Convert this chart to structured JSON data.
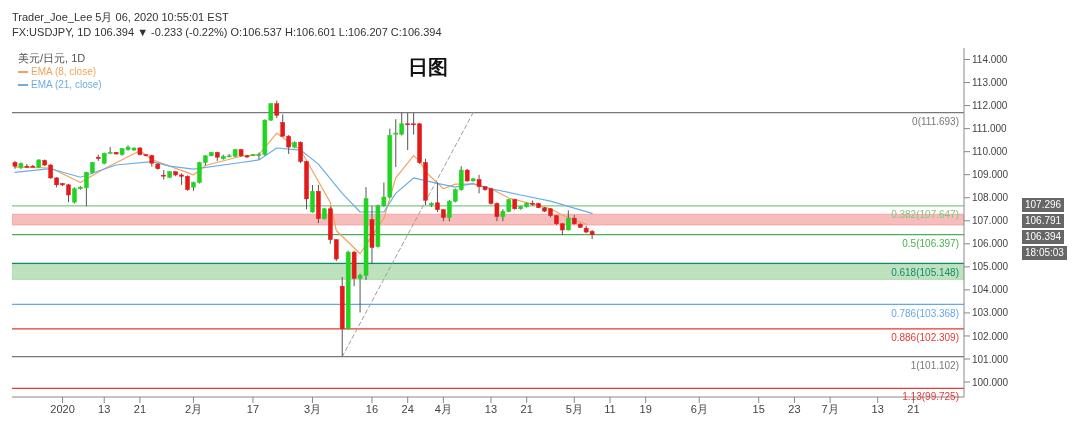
{
  "chart_data": {
    "type": "candlestick",
    "title": "日图",
    "subtitle": "Trader_Joe_Lee 5月 06, 2020 10:55:01 EST",
    "legend_title": "美元/日元, 1D",
    "legend": "top left",
    "categories": [
      null,
      null,
      null,
      null,
      null,
      null,
      null,
      null,
      "2020",
      null,
      null,
      null,
      null,
      null,
      null,
      "13",
      null,
      null,
      null,
      null,
      null,
      "21",
      null,
      null,
      null,
      null,
      null,
      null,
      null,
      null,
      "2月",
      null,
      null,
      null,
      null,
      null,
      null,
      null,
      null,
      null,
      "17",
      null,
      null,
      null,
      null,
      null,
      null,
      null,
      null,
      null,
      "3月",
      null,
      null,
      null,
      null,
      null,
      null,
      null,
      null,
      null,
      "16",
      null,
      null,
      null,
      null,
      null,
      "24",
      null,
      null,
      null,
      null,
      null,
      "4月",
      null,
      null,
      null,
      null,
      null,
      null,
      null,
      "13",
      null,
      null,
      null,
      null,
      null,
      "21",
      null,
      null,
      null,
      null,
      null,
      null,
      null,
      "5月",
      null,
      null,
      null,
      null,
      null,
      "11",
      null,
      null,
      null,
      null,
      null,
      "19",
      null,
      null,
      null,
      null,
      null,
      null,
      null,
      null,
      "6月",
      null,
      null,
      null,
      null,
      null,
      null,
      null,
      null,
      null,
      "15",
      null,
      null,
      null,
      null,
      null,
      "23",
      null,
      null,
      null,
      null,
      null,
      "7月",
      null,
      null,
      null,
      null,
      null,
      null,
      null,
      "13",
      null,
      null,
      null,
      null,
      null,
      "21",
      null,
      null,
      null,
      null,
      null,
      null,
      null,
      null
    ],
    "ohlc": [
      [
        109.53,
        109.6,
        109.26,
        109.37
      ],
      [
        109.33,
        109.53,
        109.24,
        109.49
      ],
      [
        109.37,
        109.46,
        109.29,
        109.33
      ],
      [
        109.37,
        109.42,
        109.32,
        109.35
      ],
      [
        109.33,
        109.67,
        109.3,
        109.64
      ],
      [
        109.62,
        109.66,
        109.38,
        109.42
      ],
      [
        109.42,
        109.46,
        108.82,
        108.86
      ],
      [
        108.86,
        108.9,
        108.45,
        108.56
      ],
      [
        108.62,
        108.64,
        108.5,
        108.56
      ],
      [
        108.56,
        108.6,
        107.81,
        108.12
      ],
      [
        107.81,
        108.45,
        107.75,
        108.39
      ],
      [
        108.39,
        108.5,
        108.35,
        108.46
      ],
      [
        108.43,
        109.13,
        107.63,
        109.1
      ],
      [
        109.09,
        109.56,
        109.05,
        109.53
      ],
      [
        109.76,
        109.87,
        109.6,
        109.7
      ],
      [
        109.5,
        109.96,
        109.45,
        109.93
      ],
      [
        109.93,
        110.2,
        109.9,
        109.97
      ],
      [
        109.97,
        109.99,
        109.87,
        109.9
      ],
      [
        109.87,
        110.16,
        109.83,
        110.13
      ],
      [
        110.09,
        110.27,
        110.04,
        110.2
      ],
      [
        110.07,
        110.18,
        110.04,
        110.16
      ],
      [
        110.16,
        110.2,
        109.83,
        109.87
      ],
      [
        109.87,
        109.9,
        109.8,
        109.83
      ],
      [
        109.83,
        109.87,
        109.35,
        109.5
      ],
      [
        109.46,
        109.5,
        109.22,
        109.26
      ],
      [
        108.98,
        109.2,
        108.79,
        108.97
      ],
      [
        108.89,
        109.16,
        108.85,
        109.13
      ],
      [
        109.13,
        109.15,
        108.93,
        108.99
      ],
      [
        108.99,
        109.06,
        108.56,
        108.93
      ],
      [
        108.93,
        108.97,
        108.3,
        108.35
      ],
      [
        108.46,
        108.7,
        108.3,
        108.66
      ],
      [
        108.66,
        109.56,
        108.62,
        109.53
      ],
      [
        109.53,
        109.85,
        109.4,
        109.82
      ],
      [
        109.82,
        110.0,
        109.8,
        109.97
      ],
      [
        109.97,
        110.0,
        109.6,
        109.76
      ],
      [
        109.69,
        109.87,
        109.65,
        109.8
      ],
      [
        109.8,
        109.9,
        109.75,
        109.82
      ],
      [
        109.8,
        110.12,
        109.76,
        110.09
      ],
      [
        110.09,
        110.12,
        109.77,
        109.82
      ],
      [
        109.82,
        109.86,
        109.73,
        109.77
      ],
      [
        109.85,
        109.9,
        109.8,
        109.87
      ],
      [
        109.83,
        109.96,
        109.66,
        109.87
      ],
      [
        109.87,
        111.4,
        109.83,
        111.37
      ],
      [
        111.37,
        112.11,
        111.33,
        112.08
      ],
      [
        112.08,
        112.22,
        111.46,
        111.58
      ],
      [
        111.27,
        111.62,
        110.67,
        110.67
      ],
      [
        110.67,
        110.72,
        109.9,
        110.2
      ],
      [
        110.2,
        110.45,
        110.15,
        110.4
      ],
      [
        110.4,
        110.45,
        109.5,
        109.57
      ],
      [
        109.57,
        109.6,
        107.5,
        107.95
      ],
      [
        107.38,
        108.55,
        107.35,
        108.28
      ],
      [
        108.28,
        108.56,
        106.9,
        107.09
      ],
      [
        107.09,
        107.55,
        107.05,
        107.52
      ],
      [
        107.52,
        107.62,
        106.0,
        106.18
      ],
      [
        106.18,
        106.2,
        105.25,
        105.34
      ],
      [
        104.16,
        104.56,
        101.102,
        102.31
      ],
      [
        102.31,
        105.7,
        102.28,
        105.64
      ],
      [
        105.64,
        105.7,
        104.16,
        104.5
      ],
      [
        104.5,
        104.7,
        103.02,
        104.63
      ],
      [
        104.63,
        108.46,
        104.43,
        107.96
      ],
      [
        107.05,
        107.65,
        105.13,
        105.84
      ],
      [
        105.88,
        107.7,
        105.84,
        107.65
      ],
      [
        107.65,
        108.66,
        107.6,
        108.03
      ],
      [
        108.03,
        111.0,
        107.98,
        110.71
      ],
      [
        110.76,
        111.41,
        109.33,
        110.81
      ],
      [
        110.76,
        111.693,
        110.7,
        111.21
      ],
      [
        111.21,
        111.68,
        110.07,
        111.2
      ],
      [
        111.21,
        111.68,
        110.74,
        111.2
      ],
      [
        111.21,
        111.25,
        109.47,
        109.53
      ],
      [
        109.53,
        109.69,
        107.68,
        107.89
      ],
      [
        107.68,
        107.8,
        107.6,
        107.76
      ],
      [
        107.78,
        108.66,
        107.38,
        107.48
      ],
      [
        107.48,
        107.5,
        106.98,
        107.14
      ],
      [
        107.14,
        107.9,
        106.98,
        107.85
      ],
      [
        107.85,
        108.4,
        107.8,
        108.35
      ],
      [
        108.35,
        109.37,
        108.3,
        109.2
      ],
      [
        109.2,
        109.25,
        108.7,
        108.73
      ],
      [
        108.73,
        108.85,
        108.7,
        108.82
      ],
      [
        108.79,
        108.99,
        108.19,
        108.48
      ],
      [
        108.48,
        108.5,
        108.3,
        108.35
      ],
      [
        108.39,
        108.43,
        107.7,
        107.75
      ],
      [
        107.75,
        107.8,
        106.98,
        107.18
      ],
      [
        107.18,
        107.5,
        106.98,
        107.41
      ],
      [
        107.41,
        107.95,
        107.37,
        107.92
      ],
      [
        107.92,
        107.95,
        107.48,
        107.52
      ],
      [
        107.52,
        107.65,
        107.48,
        107.61
      ],
      [
        107.61,
        107.8,
        107.57,
        107.76
      ],
      [
        107.76,
        107.88,
        107.65,
        107.75
      ],
      [
        107.75,
        107.78,
        107.55,
        107.57
      ],
      [
        107.56,
        107.6,
        107.38,
        107.42
      ],
      [
        107.52,
        107.55,
        107.15,
        107.22
      ],
      [
        107.22,
        107.25,
        106.82,
        106.87
      ],
      [
        106.87,
        106.9,
        106.38,
        106.6
      ],
      [
        106.6,
        107.45,
        106.58,
        107.11
      ],
      [
        107.11,
        107.25,
        106.83,
        106.87
      ],
      [
        106.85,
        106.9,
        106.68,
        106.71
      ],
      [
        106.68,
        106.78,
        106.46,
        106.51
      ],
      [
        106.537,
        106.601,
        106.207,
        106.394
      ],
      null,
      null,
      null,
      null,
      null,
      null,
      null,
      null,
      null,
      null,
      null,
      null,
      null,
      null,
      null,
      null,
      null,
      null,
      null,
      null,
      null,
      null,
      null,
      null,
      null,
      null,
      null,
      null,
      null,
      null,
      null,
      null,
      null,
      null,
      null,
      null,
      null,
      null,
      null,
      null,
      null,
      null,
      null,
      null,
      null,
      null,
      null,
      null,
      null,
      null,
      null,
      null,
      null,
      null,
      null,
      null,
      null,
      null,
      null,
      null,
      null,
      null
    ],
    "series": [
      {
        "type": "line",
        "name": "EMA (8, close)",
        "color": "#f4a25b",
        "values": [
          109.33,
          null,
          null,
          null,
          null,
          null,
          109.29,
          null,
          null,
          null,
          null,
          108.66,
          null,
          null,
          null,
          109.26,
          null,
          null,
          null,
          null,
          null,
          110.04,
          null,
          109.66,
          null,
          null,
          null,
          null,
          null,
          null,
          108.99,
          null,
          109.4,
          null,
          null,
          null,
          null,
          null,
          109.8,
          null,
          null,
          109.87,
          null,
          null,
          110.8,
          null,
          null,
          null,
          110.07,
          null,
          null,
          null,
          null,
          107.79,
          106.58,
          null,
          null,
          null,
          105.57,
          null,
          null,
          null,
          107.11,
          null,
          108.86,
          null,
          null,
          109.83,
          109.6,
          109.13,
          null,
          null,
          108.39,
          null,
          108.59,
          null,
          null,
          108.59,
          null,
          null,
          108.39,
          null,
          null,
          107.99,
          null,
          null,
          null,
          107.72,
          null,
          null,
          107.52,
          null,
          107.25,
          null,
          null,
          null,
          106.85,
          null,
          null,
          null,
          null,
          null,
          null,
          null,
          null,
          null,
          null,
          null,
          null,
          null,
          null,
          null,
          null,
          null,
          null,
          null,
          null,
          null,
          null,
          null,
          null,
          null,
          null,
          null,
          null,
          null,
          null,
          null,
          null,
          null,
          null,
          null,
          null,
          null,
          null,
          null,
          null,
          null,
          null,
          null,
          null,
          null,
          null,
          null,
          null,
          null,
          null,
          null,
          null,
          null,
          null,
          null,
          null,
          null,
          null,
          null,
          null,
          null,
          null,
          null
        ]
      },
      {
        "type": "line",
        "name": "EMA (21, close)",
        "color": "#6aaee6",
        "values": [
          109.1,
          null,
          null,
          null,
          null,
          null,
          109.26,
          null,
          null,
          null,
          null,
          108.89,
          null,
          null,
          null,
          null,
          null,
          109.42,
          null,
          null,
          null,
          null,
          null,
          109.57,
          null,
          null,
          109.37,
          null,
          null,
          null,
          109.24,
          null,
          null,
          null,
          null,
          null,
          null,
          null,
          109.53,
          null,
          null,
          109.64,
          null,
          null,
          110.16,
          null,
          null,
          null,
          110.07,
          null,
          null,
          109.46,
          null,
          null,
          null,
          108.19,
          null,
          null,
          107.38,
          null,
          null,
          null,
          107.38,
          null,
          108.19,
          null,
          null,
          108.86,
          null,
          null,
          null,
          108.62,
          null,
          null,
          108.46,
          null,
          null,
          108.62,
          null,
          null,
          108.39,
          null,
          null,
          null,
          null,
          108.12,
          null,
          null,
          null,
          null,
          107.85,
          null,
          null,
          null,
          null,
          null,
          null,
          107.32,
          null,
          null,
          null,
          null,
          null,
          null,
          null,
          null,
          null,
          null,
          null,
          null,
          null,
          null,
          null,
          null,
          null,
          null,
          null,
          null,
          null,
          null,
          null,
          null,
          null,
          null,
          null,
          null,
          null,
          null,
          null,
          null,
          null,
          null,
          null,
          null,
          null,
          null,
          null,
          null,
          null,
          null,
          null,
          null,
          null,
          null,
          null,
          null,
          null,
          null,
          null,
          null,
          null,
          null,
          null,
          null,
          null,
          null,
          null,
          null,
          null,
          null
        ]
      },
      {
        "type": "line",
        "color": "#9e9e9e",
        "line_style": "dashed",
        "values": [
          null,
          null,
          null,
          null,
          null,
          null,
          null,
          null,
          null,
          null,
          null,
          null,
          null,
          null,
          null,
          null,
          null,
          null,
          null,
          null,
          null,
          null,
          null,
          null,
          null,
          null,
          null,
          null,
          null,
          null,
          null,
          null,
          null,
          null,
          null,
          null,
          null,
          null,
          null,
          null,
          null,
          null,
          null,
          null,
          null,
          null,
          null,
          null,
          null,
          null,
          null,
          null,
          null,
          null,
          null,
          101.1,
          null,
          null,
          null,
          null,
          null,
          null,
          null,
          null,
          null,
          null,
          null,
          null,
          null,
          null,
          null,
          null,
          null,
          null,
          null,
          null,
          null,
          111.69,
          null,
          null,
          null,
          null,
          null,
          null,
          null,
          null,
          null,
          null,
          null,
          null,
          null,
          null,
          null,
          null,
          null,
          null,
          null,
          null,
          null,
          null,
          null,
          null,
          null,
          null,
          null,
          null,
          null,
          null,
          null,
          null,
          null,
          null,
          null,
          null,
          null,
          null,
          null,
          null,
          null,
          null,
          null,
          null,
          null,
          null,
          null,
          null,
          null,
          null,
          null,
          null,
          null,
          null,
          null,
          null,
          null,
          null,
          null,
          null,
          null,
          null,
          null,
          null,
          null,
          null,
          null,
          null,
          null,
          null,
          null,
          null,
          null,
          null,
          null,
          null,
          null,
          null,
          null,
          null,
          null,
          null
        ]
      }
    ],
    "ref_lines": [
      {
        "axis": "y",
        "value": 111.693,
        "label": "0(111.693)",
        "color": "#787878"
      },
      {
        "axis": "y",
        "value": 107.647,
        "label": "0.382(107.647)",
        "color": "#81c784"
      },
      {
        "axis": "y",
        "value": 106.397,
        "label": "0.5(106.397)",
        "color": "#4caf50"
      },
      {
        "axis": "y",
        "value": 105.148,
        "label": "0.618(105.148)",
        "color": "#138a6e"
      },
      {
        "axis": "y",
        "value": 103.368,
        "label": "0.786(103.368)",
        "color": "#64a8e8"
      },
      {
        "axis": "y",
        "value": 102.309,
        "label": "0.886(102.309)",
        "color": "#e53935"
      },
      {
        "axis": "y",
        "value": 101.102,
        "label": "1(101.102)",
        "color": "#787878"
      },
      {
        "axis": "y",
        "value": 99.725,
        "label": "1.13(99.725)",
        "color": "#e53935"
      }
    ],
    "bands": [
      {
        "axis": "y",
        "from": 106.82,
        "to": 107.28,
        "color": "#f4a6a6"
      },
      {
        "axis": "y",
        "from": 104.46,
        "to": 105.13,
        "color": "#a8d8a8"
      }
    ],
    "annotations": [
      "FX:USDJPY, 1D 106.394 ▼ -0.233 (-0.22%) O:106.537 H:106.601 L:106.207 C:106.394",
      "107.296",
      "106.791",
      "106.394",
      "18:05:03"
    ],
    "ylim": [
      99.35,
      114.5
    ],
    "yticks": [
      {
        "value": 100,
        "label": "100.000"
      },
      {
        "value": 101,
        "label": "101.000"
      },
      {
        "value": 102,
        "label": "102.000"
      },
      {
        "value": 103,
        "label": "103.000"
      },
      {
        "value": 104,
        "label": "104.000"
      },
      {
        "value": 105,
        "label": "105.000"
      },
      {
        "value": 106,
        "label": "106.000"
      },
      {
        "value": 107,
        "label": "107.000"
      },
      {
        "value": 108,
        "label": "108.000"
      },
      {
        "value": 109,
        "label": "109.000"
      },
      {
        "value": 110,
        "label": "110.000"
      },
      {
        "value": 111,
        "label": "111.000"
      },
      {
        "value": 112,
        "label": "112.000"
      },
      {
        "value": 113,
        "label": "113.000"
      },
      {
        "value": 114,
        "label": "114.000"
      }
    ]
  }
}
